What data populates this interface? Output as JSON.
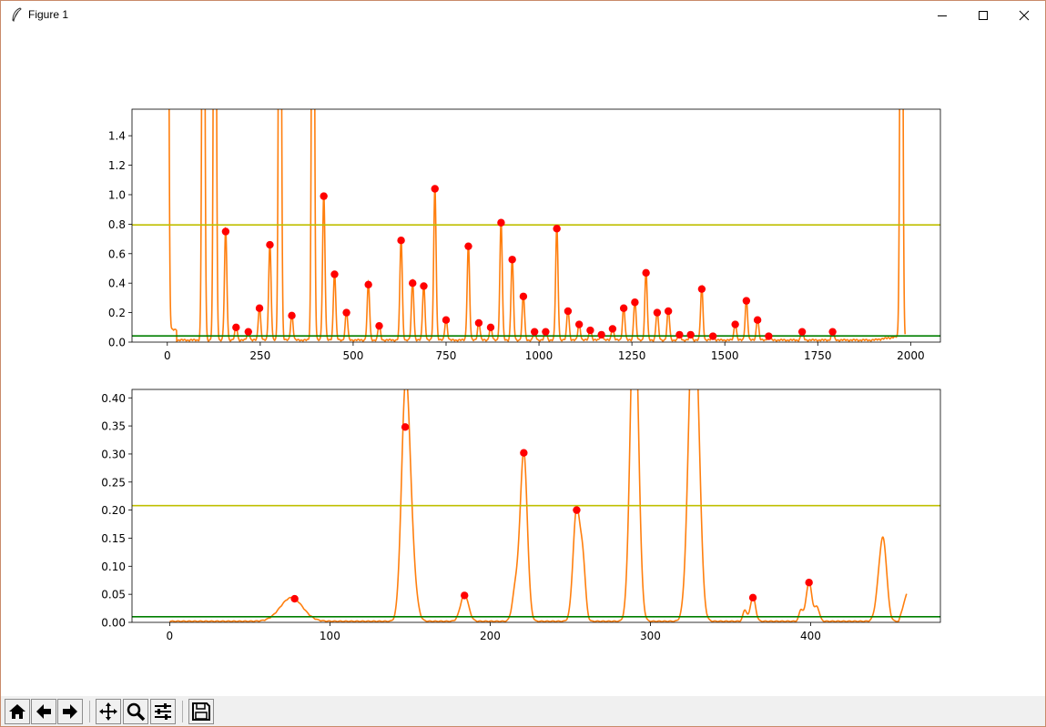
{
  "window": {
    "title": "Figure 1"
  },
  "toolbar": {
    "buttons": [
      {
        "name": "home-icon",
        "label": "Home"
      },
      {
        "name": "back-icon",
        "label": "Back"
      },
      {
        "name": "forward-icon",
        "label": "Forward"
      },
      {
        "name": "pan-icon",
        "label": "Pan"
      },
      {
        "name": "zoom-icon",
        "label": "Zoom"
      },
      {
        "name": "configure-subplots-icon",
        "label": "Configure subplots"
      },
      {
        "name": "save-icon",
        "label": "Save"
      }
    ]
  },
  "colors": {
    "signal": "#ff7f0e",
    "peak": "#ff0000",
    "upper": "#bfbf00",
    "lower": "#007f00"
  },
  "chart_data": [
    {
      "type": "line",
      "title": "",
      "xlim": [
        -95,
        2080
      ],
      "ylim": [
        0,
        1.58
      ],
      "xticks": [
        0,
        250,
        500,
        750,
        1000,
        1250,
        1500,
        1750,
        2000
      ],
      "yticks": [
        0.0,
        0.2,
        0.4,
        0.6,
        0.8,
        1.0,
        1.2,
        1.4
      ],
      "ytick_labels": [
        "0.0",
        "0.2",
        "0.4",
        "0.6",
        "0.8",
        "1.0",
        "1.2",
        "1.4"
      ],
      "xtick_labels": [
        "0",
        "250",
        "500",
        "750",
        "1000",
        "1250",
        "1500",
        "1750",
        "2000"
      ],
      "upper_threshold": 0.795,
      "lower_threshold": 0.042,
      "series_span": [
        0,
        1985
      ],
      "tall_peaks": [
        0,
        97,
        128,
        303,
        392,
        1975
      ],
      "peaks": [
        [
          157,
          0.75
        ],
        [
          185,
          0.1
        ],
        [
          218,
          0.07
        ],
        [
          248,
          0.23
        ],
        [
          276,
          0.66
        ],
        [
          335,
          0.18
        ],
        [
          421,
          0.99
        ],
        [
          450,
          0.46
        ],
        [
          482,
          0.2
        ],
        [
          541,
          0.39
        ],
        [
          570,
          0.11
        ],
        [
          629,
          0.69
        ],
        [
          660,
          0.4
        ],
        [
          690,
          0.38
        ],
        [
          720,
          1.04
        ],
        [
          750,
          0.15
        ],
        [
          810,
          0.65
        ],
        [
          838,
          0.13
        ],
        [
          870,
          0.1
        ],
        [
          898,
          0.81
        ],
        [
          928,
          0.56
        ],
        [
          958,
          0.31
        ],
        [
          988,
          0.07
        ],
        [
          1018,
          0.07
        ],
        [
          1048,
          0.77
        ],
        [
          1078,
          0.21
        ],
        [
          1108,
          0.12
        ],
        [
          1138,
          0.08
        ],
        [
          1168,
          0.05
        ],
        [
          1198,
          0.09
        ],
        [
          1228,
          0.23
        ],
        [
          1258,
          0.27
        ],
        [
          1288,
          0.47
        ],
        [
          1318,
          0.2
        ],
        [
          1348,
          0.21
        ],
        [
          1378,
          0.05
        ],
        [
          1408,
          0.05
        ],
        [
          1438,
          0.36
        ],
        [
          1468,
          0.04
        ],
        [
          1528,
          0.12
        ],
        [
          1558,
          0.28
        ],
        [
          1588,
          0.15
        ],
        [
          1618,
          0.04
        ],
        [
          1708,
          0.07
        ],
        [
          1790,
          0.07
        ]
      ]
    },
    {
      "type": "line",
      "title": "",
      "xlim": [
        -23.5,
        481
      ],
      "ylim": [
        0,
        0.415
      ],
      "xticks": [
        0,
        100,
        200,
        300,
        400
      ],
      "yticks": [
        0.0,
        0.05,
        0.1,
        0.15,
        0.2,
        0.25,
        0.3,
        0.35,
        0.4
      ],
      "ytick_labels": [
        "0.00",
        "0.05",
        "0.10",
        "0.15",
        "0.20",
        "0.25",
        "0.30",
        "0.35",
        "0.40"
      ],
      "xtick_labels": [
        "0",
        "100",
        "200",
        "300",
        "400"
      ],
      "upper_threshold": 0.208,
      "lower_threshold": 0.01,
      "series_span": [
        0,
        460
      ],
      "tall_peaks": [
        290,
        327
      ],
      "bumps": [
        [
          76,
          0.042,
          7
        ],
        [
          147,
          0.345,
          2.5
        ],
        [
          150,
          0.14,
          3
        ],
        [
          184,
          0.048,
          2.5
        ],
        [
          216,
          0.06,
          2
        ],
        [
          221,
          0.3,
          2.2
        ],
        [
          254,
          0.2,
          2.2
        ],
        [
          258,
          0.09,
          1.6
        ],
        [
          290,
          0.6,
          2.5
        ],
        [
          327,
          0.6,
          3
        ],
        [
          331,
          0.03,
          1.5
        ],
        [
          359,
          0.02,
          1.2
        ],
        [
          364,
          0.044,
          1.6
        ],
        [
          394,
          0.02,
          1.2
        ],
        [
          399,
          0.07,
          1.8
        ],
        [
          404,
          0.025,
          1.5
        ],
        [
          444,
          0.095,
          2.5
        ],
        [
          446,
          0.07,
          2
        ]
      ],
      "peaks": [
        [
          78,
          0.042
        ],
        [
          147,
          0.348
        ],
        [
          184,
          0.048
        ],
        [
          221,
          0.302
        ],
        [
          254,
          0.2
        ],
        [
          364,
          0.044
        ],
        [
          399,
          0.071
        ]
      ]
    }
  ]
}
